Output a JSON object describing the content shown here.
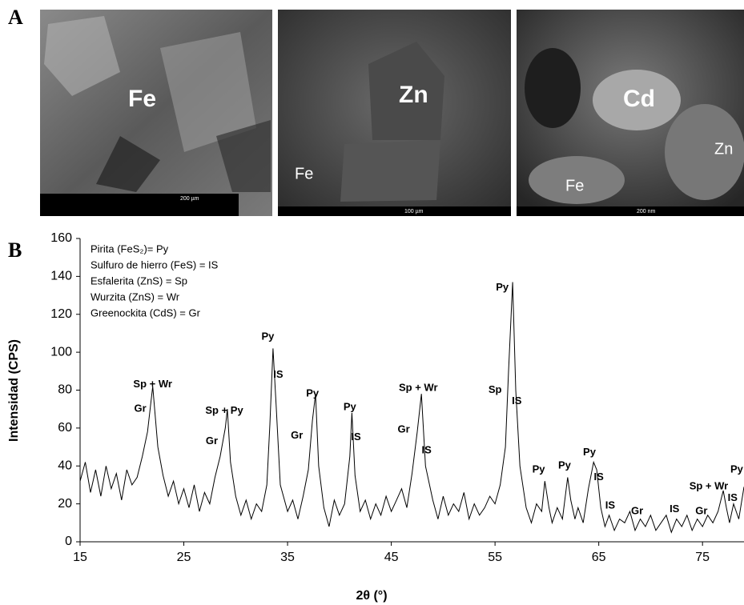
{
  "panel_a": {
    "label": "A",
    "images": [
      {
        "labels": [
          "Fe"
        ],
        "scale": "200 µm"
      },
      {
        "labels": [
          "Zn",
          "Fe"
        ],
        "scale": "100 µm"
      },
      {
        "labels": [
          "Cd",
          "Zn",
          "Fe"
        ],
        "scale": "200 nm"
      }
    ]
  },
  "chart_data": {
    "type": "line",
    "panel_label": "B",
    "x_label": "2θ (°)",
    "y_label": "Intensidad (CPS)",
    "notes": [
      "Pirita (FeS₂)= Py",
      "Sulfuro de hierro (FeS) = IS",
      "Esfalerita (ZnS) = Sp",
      "Wurzita (ZnS) = Wr",
      "Greenockita (CdS) = Gr"
    ],
    "color": "#000000",
    "xlim": [
      15,
      79
    ],
    "xticks": [
      15,
      25,
      35,
      45,
      55,
      65,
      75
    ],
    "ylim": [
      0,
      160
    ],
    "yticks": [
      0,
      20,
      40,
      60,
      80,
      100,
      120,
      140,
      160
    ],
    "x": [
      15,
      15.5,
      16,
      16.5,
      17,
      17.5,
      18,
      18.5,
      19,
      19.5,
      20,
      20.5,
      21,
      21.5,
      22,
      22.5,
      23,
      23.5,
      24,
      24.5,
      25,
      25.5,
      26,
      26.5,
      27,
      27.5,
      28,
      28.5,
      29,
      29.2,
      29.5,
      30,
      30.5,
      31,
      31.5,
      32,
      32.5,
      33,
      33.3,
      33.6,
      33.9,
      34.3,
      35,
      35.5,
      36,
      36.5,
      37,
      37.4,
      37.7,
      38,
      38.5,
      39,
      39.5,
      40,
      40.5,
      41,
      41.2,
      41.5,
      42,
      42.5,
      43,
      43.5,
      44,
      44.5,
      45,
      45.5,
      46,
      46.5,
      47,
      47.5,
      47.9,
      48.3,
      49,
      49.5,
      50,
      50.5,
      51,
      51.5,
      52,
      52.5,
      53,
      53.5,
      54,
      54.5,
      55,
      55.5,
      56,
      56.3,
      56.7,
      57,
      57.4,
      58,
      58.5,
      59,
      59.5,
      59.8,
      60.2,
      60.5,
      61,
      61.5,
      62,
      62.3,
      62.7,
      63,
      63.5,
      64,
      64.5,
      64.8,
      65.2,
      65.6,
      66,
      66.5,
      67,
      67.5,
      68,
      68.5,
      69,
      69.5,
      70,
      70.5,
      71,
      71.5,
      72,
      72.5,
      73,
      73.5,
      74,
      74.5,
      75,
      75.5,
      76,
      76.5,
      77,
      77.3,
      77.6,
      78,
      78.5,
      79
    ],
    "values": [
      32,
      42,
      26,
      38,
      24,
      40,
      28,
      36,
      22,
      38,
      30,
      34,
      45,
      58,
      82,
      50,
      35,
      24,
      32,
      20,
      28,
      18,
      30,
      16,
      26,
      20,
      34,
      45,
      60,
      70,
      42,
      24,
      14,
      22,
      12,
      20,
      16,
      30,
      62,
      102,
      72,
      30,
      16,
      22,
      12,
      24,
      38,
      64,
      78,
      40,
      18,
      8,
      22,
      14,
      20,
      45,
      68,
      35,
      16,
      22,
      12,
      20,
      14,
      24,
      16,
      22,
      28,
      18,
      36,
      58,
      78,
      40,
      22,
      12,
      24,
      14,
      20,
      16,
      26,
      12,
      20,
      14,
      18,
      24,
      20,
      30,
      50,
      90,
      137,
      80,
      40,
      18,
      10,
      20,
      16,
      32,
      18,
      10,
      18,
      12,
      34,
      22,
      12,
      18,
      10,
      28,
      42,
      38,
      18,
      8,
      14,
      6,
      12,
      10,
      16,
      6,
      12,
      8,
      14,
      6,
      10,
      14,
      5,
      12,
      8,
      14,
      6,
      12,
      8,
      14,
      10,
      16,
      27,
      18,
      10,
      20,
      12,
      29
    ],
    "annotations": [
      {
        "text": "Sp + Wr",
        "x": 22.0,
        "y": 83
      },
      {
        "text": "Gr",
        "x": 20.8,
        "y": 70
      },
      {
        "text": "Sp + Py",
        "x": 28.9,
        "y": 69
      },
      {
        "text": "Gr",
        "x": 27.7,
        "y": 53
      },
      {
        "text": "Py",
        "x": 33.1,
        "y": 108
      },
      {
        "text": "IS",
        "x": 34.1,
        "y": 88
      },
      {
        "text": "Py",
        "x": 37.4,
        "y": 78
      },
      {
        "text": "Gr",
        "x": 35.9,
        "y": 56
      },
      {
        "text": "Py",
        "x": 41.0,
        "y": 71
      },
      {
        "text": "IS",
        "x": 41.6,
        "y": 55
      },
      {
        "text": "Sp + Wr",
        "x": 47.6,
        "y": 81
      },
      {
        "text": "Gr",
        "x": 46.2,
        "y": 59
      },
      {
        "text": "IS",
        "x": 48.4,
        "y": 48
      },
      {
        "text": "Py",
        "x": 55.7,
        "y": 134
      },
      {
        "text": "Sp",
        "x": 55.0,
        "y": 80
      },
      {
        "text": "IS",
        "x": 57.1,
        "y": 74
      },
      {
        "text": "Py",
        "x": 59.2,
        "y": 38
      },
      {
        "text": "Py",
        "x": 61.7,
        "y": 40
      },
      {
        "text": "Py",
        "x": 64.1,
        "y": 47
      },
      {
        "text": "IS",
        "x": 65.0,
        "y": 34
      },
      {
        "text": "IS",
        "x": 66.1,
        "y": 19
      },
      {
        "text": "Gr",
        "x": 68.7,
        "y": 16
      },
      {
        "text": "IS",
        "x": 72.3,
        "y": 17
      },
      {
        "text": "Gr",
        "x": 74.9,
        "y": 16
      },
      {
        "text": "Sp + Wr",
        "x": 75.6,
        "y": 29
      },
      {
        "text": "IS",
        "x": 77.9,
        "y": 23
      },
      {
        "text": "Py",
        "x": 78.3,
        "y": 38
      }
    ]
  }
}
